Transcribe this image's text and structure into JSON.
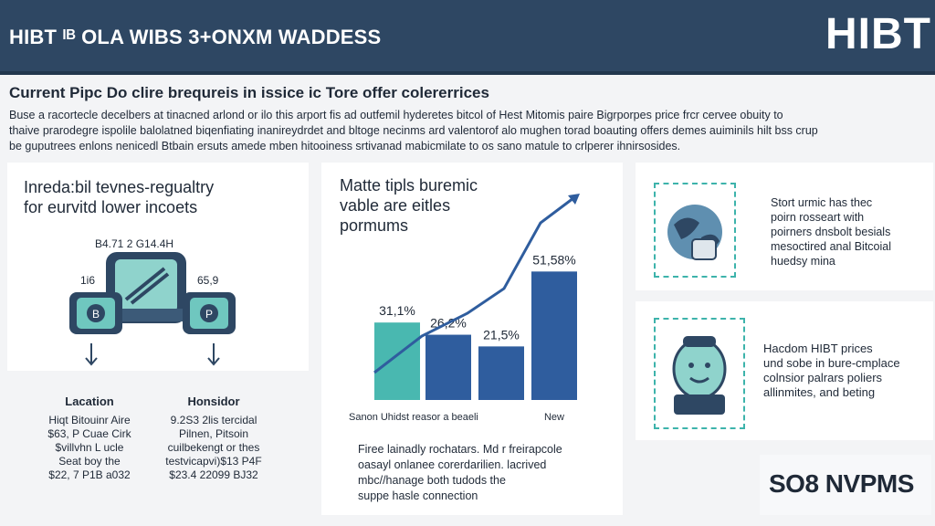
{
  "header": {
    "title": "HIBT ᴵᴮ OLA WIBS 3+ONXM WADDESS",
    "logo": "HIBT"
  },
  "intro": {
    "heading": "Current Pipc Do clire brequreis in issice ic Tore offer colererrices",
    "lines": [
      "Buse a racortecle decelbers at tinacned arlond or ilo this arport fis ad outfemil hyderetes bitcol of Hest Mitomis paire Bigrporpes price frcr cervee obuity to",
      "thaive prarodegre ispolile balolatned biqenfiating inanireydrdet and bltoge necinms ard valentorof alo mughen torad boauting offers demes auiminils hilt bss crup",
      "be guputrees enlons nenicedl Btbain ersuts amede mben hitooiness srtivanad mabicmilate to os sano matule to crlperer ihnirsosides."
    ]
  },
  "panel_left": {
    "title_1": "Inreda:bil tevnes-regualtry",
    "title_2": "for eurvitd lower incoets",
    "center_value": "B4.71 2 G14.4H",
    "left_value": "1i6",
    "right_value": "65,9",
    "left_col": {
      "heading": "Lacation",
      "lines": [
        "Hiqt Bitouinr Aire",
        "$63, P Cuae Cirk",
        "$villvhn L ucle",
        "Seat boy the",
        "$22, 7 P1B a032"
      ]
    },
    "right_col": {
      "heading": "Honsidor",
      "lines": [
        "9.2S3 2lis tercidal",
        "Pilnen, Pitsoin",
        "cuilbekengt or thes",
        "testvicapvi)$13 P4F",
        "$23.4 22099 BJ32"
      ]
    }
  },
  "panel_middle": {
    "title_1": "Matte tipls buremic",
    "title_2": "vable are eitles",
    "title_3": "pormums",
    "footer_lines": [
      "Firee lainadly rochatars. Md r freirapcole",
      "oasayl onlanee corerdarilien. lacrived",
      "mbc//hanage both tudods the",
      "suppe hasle connection"
    ]
  },
  "chart_data": {
    "type": "bar",
    "categories": [
      "Sanon Uhidst reasor a beaeli",
      "",
      "",
      "New"
    ],
    "values": [
      31.1,
      26.2,
      21.5,
      51.58
    ],
    "data_labels": [
      "31,1%",
      "26,2%",
      "21,5%",
      "51,58%"
    ],
    "xlabel": "",
    "ylabel": "",
    "trend_line": true,
    "colors": {
      "first_bar": "#49b8b0",
      "bars": "#2f5d9e",
      "line": "#2f5d9e"
    }
  },
  "panel_right_top": {
    "lines": [
      "Stort urmic has thec",
      "poirn rosseart with",
      "poirners dnsbolt besials",
      "mesoctired anal Bitcoial",
      "huedsy mina"
    ]
  },
  "panel_right_mid": {
    "lines": [
      "Hacdom HIBT prices",
      "und sobe in bure-cmplace",
      "colnsior palrars poliers",
      "allinmites, and beting"
    ]
  },
  "panel_right_bottom": {
    "label": "SO8 NVPMS"
  },
  "icons": [
    "tablet-icon",
    "coin-icon",
    "arrow-down-icon",
    "globe-icon",
    "robot-icon"
  ],
  "colors": {
    "header": "#2e4763",
    "accent_teal": "#3db3ab",
    "accent_blue": "#2f5d9e",
    "background": "#f3f4f6"
  }
}
